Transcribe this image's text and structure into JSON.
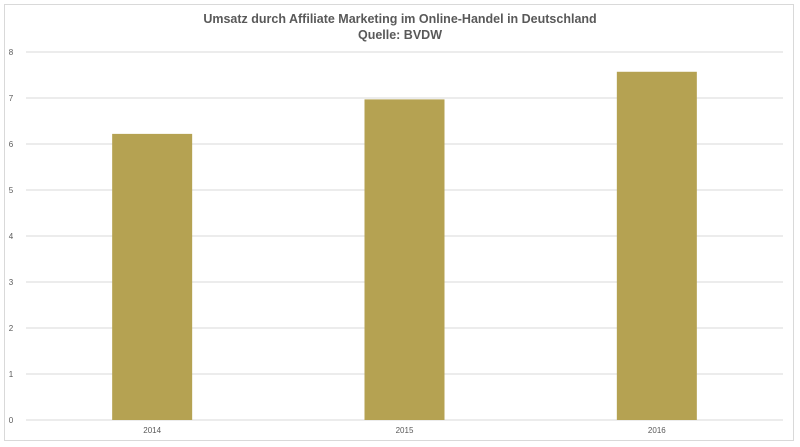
{
  "chart_data": {
    "type": "bar",
    "title": "Umsatz durch Affiliate Marketing im Online-Handel in Deutschland",
    "subtitle": "Quelle: BVDW",
    "categories": [
      "2014",
      "2015",
      "2016"
    ],
    "values": [
      6.22,
      6.97,
      7.57
    ],
    "ylim": [
      0,
      8
    ],
    "yticks": [
      "0",
      "1",
      "2",
      "3",
      "4",
      "5",
      "6",
      "7",
      "8"
    ],
    "grid": true,
    "colors": {
      "bar": "#b5a252",
      "grid": "#d9d9d9",
      "text": "#595959"
    }
  }
}
